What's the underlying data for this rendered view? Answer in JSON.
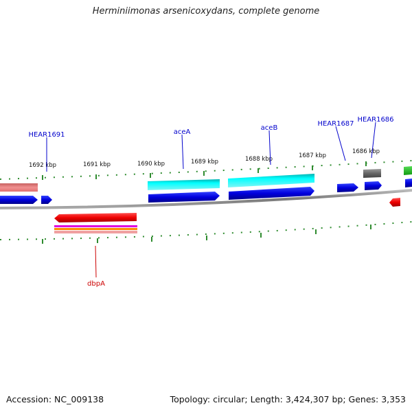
{
  "title": "Herminiimonas arsenicoxydans, complete genome",
  "footer": {
    "accession": "Accession: NC_009138",
    "summary": "Topology: circular; Length: 3,424,307 bp; Genes: 3,353"
  },
  "ticks": [
    {
      "label": "1692 kbp",
      "kbp": 1692
    },
    {
      "label": "1691 kbp",
      "kbp": 1691
    },
    {
      "label": "1690 kbp",
      "kbp": 1690
    },
    {
      "label": "1689 kbp",
      "kbp": 1689
    },
    {
      "label": "1688 kbp",
      "kbp": 1688
    },
    {
      "label": "1687 kbp",
      "kbp": 1687
    },
    {
      "label": "1686 kbp",
      "kbp": 1686
    }
  ],
  "gene_labels": [
    {
      "name": "HEAR1691",
      "color": "#0000cc",
      "feature": "hear1691"
    },
    {
      "name": "aceA",
      "color": "#0000cc",
      "feature": "aceA"
    },
    {
      "name": "aceB",
      "color": "#0000cc",
      "feature": "aceB"
    },
    {
      "name": "HEAR1687",
      "color": "#0000cc",
      "feature": "hear1687"
    },
    {
      "name": "HEAR1686",
      "color": "#0000cc",
      "feature": "hear1686"
    },
    {
      "name": "dbpA",
      "color": "#cc0000",
      "feature": "dbpA"
    }
  ],
  "colors": {
    "backbone": "#8a8a8a",
    "tick": "#2e8b2e",
    "cds": "#0000dd",
    "gene_cyan": "#00e5e5",
    "gene_red": "#ee0000",
    "gene_pink": "#e88080",
    "gene_gray": "#707070",
    "gene_green": "#22bb22"
  }
}
